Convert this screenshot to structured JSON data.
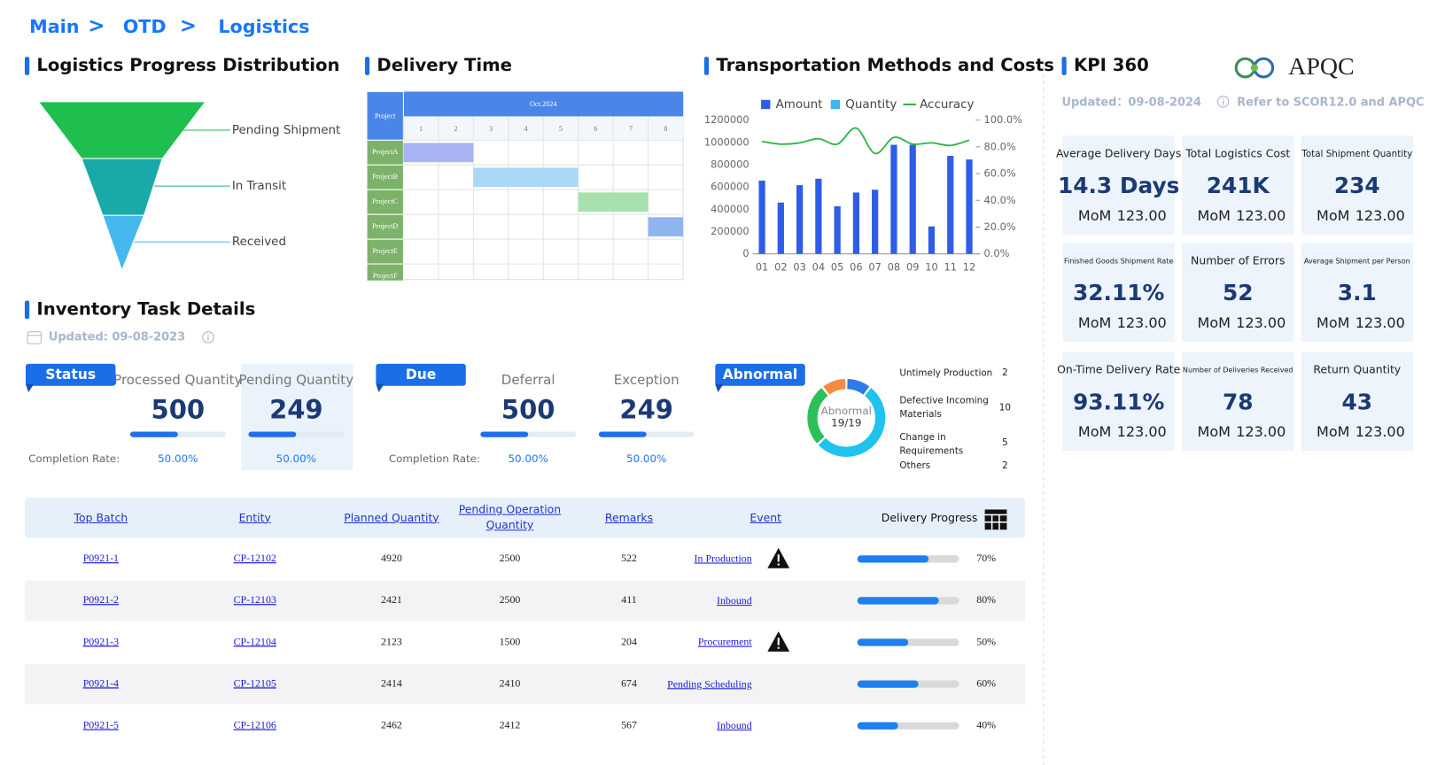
{
  "breadcrumb": {
    "items": [
      "Main",
      "OTD",
      "Logistics"
    ],
    "separator": ">"
  },
  "funnel": {
    "title": "Logistics Progress Distribution",
    "stages": [
      {
        "label": "Pending Shipment",
        "color": "#1fbf4f"
      },
      {
        "label": "In Transit",
        "color": "#1aa9a9"
      },
      {
        "label": "Received",
        "color": "#45b8ef"
      }
    ]
  },
  "gantt": {
    "title": "Delivery Time",
    "corner": "Project",
    "month": "Oct.2024",
    "days": [
      1,
      2,
      3,
      4,
      5,
      6,
      7,
      8
    ],
    "projects": [
      {
        "name": "ProjectA",
        "start": 1,
        "end": 2,
        "color": "#a8b4f4"
      },
      {
        "name": "ProjectB",
        "start": 3,
        "end": 5,
        "color": "#aad8f6"
      },
      {
        "name": "ProjectC",
        "start": 6,
        "end": 7,
        "color": "#a8e1ae"
      },
      {
        "name": "ProjectD",
        "start": 8,
        "end": 8,
        "color": "#8fb4f0"
      },
      {
        "name": "ProjectE"
      },
      {
        "name": "ProjectF"
      }
    ]
  },
  "transport_chart": {
    "type": "bar",
    "title": "Transportation Methods and Costs",
    "categories": [
      "01",
      "02",
      "03",
      "04",
      "05",
      "06",
      "07",
      "08",
      "09",
      "10",
      "11",
      "12"
    ],
    "series": [
      {
        "name": "Amount",
        "color": "#2f5de8",
        "type": "bar",
        "values": [
          657000,
          460000,
          616000,
          674000,
          427000,
          550000,
          575000,
          978000,
          978000,
          246000,
          879000,
          846000
        ]
      },
      {
        "name": "Quantity",
        "color": "#3db8ee"
      },
      {
        "name": "Accuracy",
        "color": "#2db84d",
        "type": "line",
        "axis": "y2",
        "values": [
          84,
          82,
          83,
          86,
          82,
          94,
          75,
          87,
          82,
          83,
          81,
          85
        ]
      }
    ],
    "ylim": [
      0,
      1200000
    ],
    "yticks": [
      0,
      200000,
      400000,
      600000,
      800000,
      1000000,
      1200000
    ],
    "y2lim": [
      0,
      100
    ],
    "y2ticks": [
      {
        "value": 0,
        "label": "0.0%"
      },
      {
        "value": 20,
        "label": "20.0%"
      },
      {
        "value": 40,
        "label": "40.0%"
      },
      {
        "value": 60,
        "label": "60.0%"
      },
      {
        "value": 80,
        "label": "80.0%"
      },
      {
        "value": 100,
        "label": "100.0%"
      }
    ]
  },
  "kpi": {
    "title": "KPI 360",
    "logo": "APQC",
    "updated": "Updated：09-08-2024",
    "note": "Refer to SCOR12.0 and APQC",
    "cards": [
      {
        "label": "Average Delivery Days",
        "value": "14.3 Days",
        "mom_label": "MoM",
        "mom": "123.00"
      },
      {
        "label": "Total Logistics Cost",
        "value": "241K",
        "mom_label": "MoM",
        "mom": "123.00"
      },
      {
        "label": "Total Shipment Quantity",
        "value": "234",
        "mom_label": "MoM",
        "mom": "123.00"
      },
      {
        "label": "Finished Goods Shipment Rate",
        "value": "32.11%",
        "mom_label": "MoM",
        "mom": "123.00"
      },
      {
        "label": "Number of Errors",
        "value": "52",
        "mom_label": "MoM",
        "mom": "123.00"
      },
      {
        "label": "Average Shipment per Person",
        "value": "3.1",
        "mom_label": "MoM",
        "mom": "123.00"
      },
      {
        "label": "On-Time Delivery Rate",
        "value": "93.11%",
        "mom_label": "MoM",
        "mom": "123.00"
      },
      {
        "label": "Number of Deliveries Received",
        "value": "78",
        "mom_label": "MoM",
        "mom": "123.00"
      },
      {
        "label": "Return Quantity",
        "value": "43",
        "mom_label": "MoM",
        "mom": "123.00"
      }
    ]
  },
  "inventory": {
    "title": "Inventory Task Details",
    "updated": "Updated: 09-08-2023",
    "groups": [
      {
        "tag": "Status",
        "rate_label": "Completion Rate:",
        "metrics": [
          {
            "label": "Processed Quantity",
            "value": 500,
            "rate": {
              "value": 50,
              "label": "50.00%"
            }
          },
          {
            "label": "Pending Quantity",
            "value": 249,
            "rate": {
              "value": 50,
              "label": "50.00%"
            },
            "highlight": true
          }
        ]
      },
      {
        "tag": "Due",
        "rate_label": "Completion Rate:",
        "metrics": [
          {
            "label": "Deferral",
            "value": 500,
            "rate": {
              "value": 50,
              "label": "50.00%"
            }
          },
          {
            "label": "Exception",
            "value": 249,
            "rate": {
              "value": 50,
              "label": "50.00%"
            }
          }
        ]
      }
    ],
    "abnormal": {
      "tag": "Abnormal",
      "center_label": "Abnormal",
      "center_value": "19/19",
      "items": [
        {
          "label": "Untimely Production",
          "count": 2,
          "color": "#2d7be8"
        },
        {
          "label": "Defective Incoming Materials",
          "count": 10,
          "color": "#1fc3ee"
        },
        {
          "label": "Change in Requirements",
          "count": 5,
          "color": "#2cc05c"
        },
        {
          "label": "Others",
          "count": 2,
          "color": "#f58b3c"
        }
      ]
    }
  },
  "table": {
    "columns": [
      "Top Batch",
      "Entity",
      "Planned Quantity",
      "Pending Operation Quantity",
      "Remarks",
      "Event",
      "Delivery Progress"
    ],
    "rows": [
      {
        "batch": "P0921-1",
        "entity": "CP-12102",
        "planned": 4920,
        "pending": 2500,
        "remarks": 522,
        "event": "In Production",
        "warning": true,
        "progress": {
          "value": 70,
          "label": "70%"
        }
      },
      {
        "batch": "P0921-2",
        "entity": "CP-12103",
        "planned": 2421,
        "pending": 2500,
        "remarks": 411,
        "event": "Inbound",
        "warning": false,
        "progress": {
          "value": 80,
          "label": "80%"
        }
      },
      {
        "batch": "P0921-3",
        "entity": "CP-12104",
        "planned": 2123,
        "pending": 1500,
        "remarks": 204,
        "event": "Procurement",
        "warning": true,
        "progress": {
          "value": 50,
          "label": "50%"
        }
      },
      {
        "batch": "P0921-4",
        "entity": "CP-12105",
        "planned": 2414,
        "pending": 2410,
        "remarks": 674,
        "event": "Pending Scheduling",
        "warning": false,
        "progress": {
          "value": 60,
          "label": "60%"
        }
      },
      {
        "batch": "P0921-5",
        "entity": "CP-12106",
        "planned": 2462,
        "pending": 2412,
        "remarks": 567,
        "event": "Inbound",
        "warning": false,
        "progress": {
          "value": 40,
          "label": "40%"
        }
      }
    ]
  }
}
